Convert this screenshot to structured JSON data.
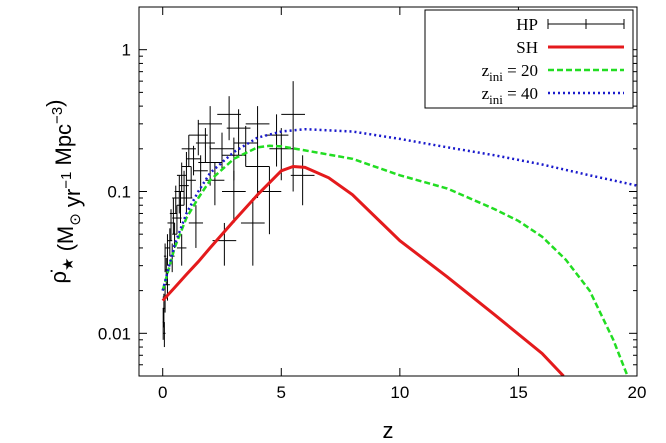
{
  "chart_data": {
    "type": "line",
    "log_y": true,
    "x_label": "z",
    "y_label": [
      {
        "text": "ρ̇"
      },
      {
        "sub": "★"
      },
      {
        "text": " (M"
      },
      {
        "sub": "⊙"
      },
      {
        "text": " yr"
      },
      {
        "sup": "−1"
      },
      {
        "text": " Mpc"
      },
      {
        "sup": "−3"
      },
      {
        "text": ")"
      }
    ],
    "xlim": [
      -1,
      20
    ],
    "xticks": [
      0,
      5,
      10,
      15,
      20
    ],
    "ylim": [
      0.005,
      2
    ],
    "yticks": [
      0.01,
      0.1,
      1
    ],
    "legend": "upper right",
    "series": [
      {
        "name": "HP",
        "type": "errorbar",
        "color": "#000000",
        "x": [
          0.02,
          0.05,
          0.07,
          0.1,
          0.1,
          0.15,
          0.2,
          0.2,
          0.3,
          0.35,
          0.4,
          0.45,
          0.5,
          0.55,
          0.6,
          0.7,
          0.75,
          0.8,
          0.9,
          1.0,
          1.0,
          1.1,
          1.2,
          1.3,
          1.5,
          1.6,
          1.8,
          2.0,
          2.0,
          2.2,
          2.5,
          2.8,
          3.0,
          3.0,
          3.2,
          3.5,
          3.8,
          4.0,
          4.0,
          4.5,
          4.8,
          5.0,
          5.5,
          5.9,
          1.4,
          2.6,
          0.8
        ],
        "values": [
          0.012,
          0.015,
          0.01,
          0.018,
          0.035,
          0.028,
          0.022,
          0.04,
          0.045,
          0.06,
          0.035,
          0.07,
          0.05,
          0.09,
          0.065,
          0.1,
          0.08,
          0.13,
          0.11,
          0.15,
          0.09,
          0.2,
          0.12,
          0.17,
          0.25,
          0.14,
          0.22,
          0.3,
          0.16,
          0.12,
          0.2,
          0.35,
          0.18,
          0.1,
          0.28,
          0.22,
          0.06,
          0.15,
          0.3,
          0.1,
          0.25,
          0.2,
          0.35,
          0.13,
          0.06,
          0.045,
          0.04
        ],
        "xerr": [
          0.02,
          0.05,
          0.05,
          0.1,
          0.05,
          0.05,
          0.1,
          0.1,
          0.1,
          0.15,
          0.1,
          0.15,
          0.1,
          0.15,
          0.2,
          0.2,
          0.15,
          0.2,
          0.2,
          0.2,
          0.25,
          0.3,
          0.2,
          0.3,
          0.4,
          0.3,
          0.4,
          0.5,
          0.5,
          0.4,
          0.5,
          0.5,
          0.5,
          0.5,
          0.5,
          0.5,
          0.5,
          0.5,
          0.5,
          0.5,
          0.5,
          0.5,
          0.5,
          0.5,
          0.3,
          0.5,
          0.2
        ],
        "yerr": [
          0.003,
          0.004,
          0.002,
          0.004,
          0.008,
          0.006,
          0.005,
          0.01,
          0.01,
          0.015,
          0.008,
          0.02,
          0.01,
          0.02,
          0.015,
          0.03,
          0.02,
          0.03,
          0.03,
          0.04,
          0.02,
          0.05,
          0.03,
          0.04,
          0.07,
          0.04,
          0.06,
          0.1,
          0.05,
          0.04,
          0.06,
          0.12,
          0.06,
          0.04,
          0.1,
          0.07,
          0.03,
          0.06,
          0.1,
          0.05,
          0.1,
          0.08,
          0.25,
          0.05,
          0.02,
          0.015,
          0.01
        ]
      },
      {
        "name": "SH",
        "type": "line",
        "color": "#e41a1c",
        "dash": "none",
        "width": 3,
        "x": [
          0,
          0.5,
          1,
          1.5,
          2,
          3,
          4,
          5,
          5.5,
          6,
          7,
          8,
          10,
          12,
          14,
          16,
          16.9
        ],
        "values": [
          0.017,
          0.021,
          0.026,
          0.032,
          0.04,
          0.062,
          0.095,
          0.14,
          0.15,
          0.148,
          0.125,
          0.095,
          0.045,
          0.025,
          0.0135,
          0.0072,
          0.005
        ]
      },
      {
        "name": "z",
        "name_sub": "ini",
        "name_rest": " = 20",
        "type": "line",
        "color": "#22dd22",
        "dash": "6 3",
        "width": 2.5,
        "x": [
          0,
          0.5,
          1,
          1.5,
          2,
          3,
          4,
          4.5,
          5,
          6,
          8,
          10,
          12,
          14,
          15,
          16,
          17,
          18,
          19,
          19.6
        ],
        "values": [
          0.02,
          0.04,
          0.065,
          0.09,
          0.12,
          0.17,
          0.205,
          0.21,
          0.208,
          0.195,
          0.17,
          0.13,
          0.105,
          0.075,
          0.062,
          0.048,
          0.033,
          0.02,
          0.009,
          0.005
        ]
      },
      {
        "name": "z",
        "name_sub": "ini",
        "name_rest": " = 40",
        "type": "line",
        "color": "#1a1acc",
        "dash": "2 3",
        "width": 2.5,
        "x": [
          0,
          0.5,
          1,
          1.5,
          2,
          3,
          4,
          5,
          6,
          8,
          10,
          12,
          14,
          16,
          18,
          20
        ],
        "values": [
          0.02,
          0.042,
          0.07,
          0.1,
          0.135,
          0.19,
          0.24,
          0.265,
          0.275,
          0.265,
          0.235,
          0.205,
          0.18,
          0.155,
          0.13,
          0.11
        ]
      }
    ]
  }
}
